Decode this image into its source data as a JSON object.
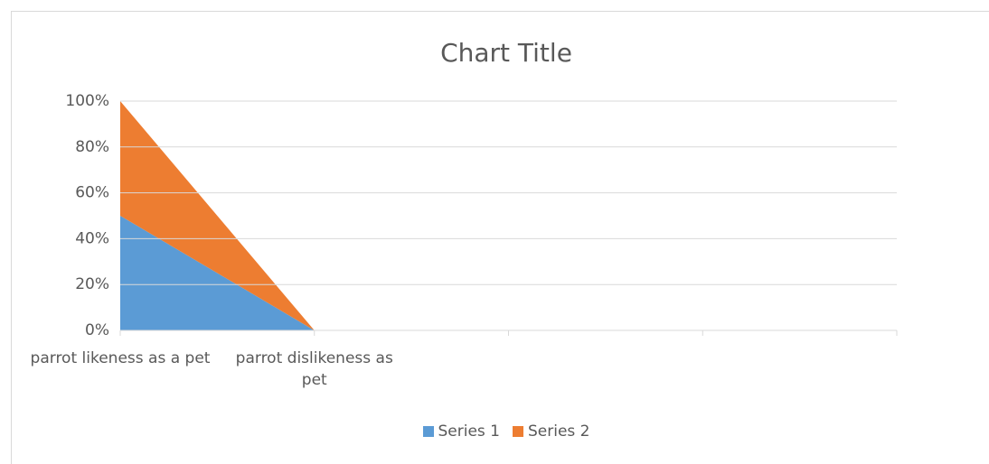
{
  "chart_data": {
    "type": "area",
    "stacked": "percent",
    "title": "Chart Title",
    "categories": [
      "parrot likeness as a pet",
      "parrot dislikeness as pet",
      null,
      null
    ],
    "series": [
      {
        "name": "Series 1",
        "color": "#5b9bd5",
        "values": [
          50,
          0,
          null,
          null
        ]
      },
      {
        "name": "Series 2",
        "color": "#ed7d31",
        "values": [
          50,
          0,
          null,
          null
        ]
      }
    ],
    "ylim": [
      0,
      100
    ],
    "yticks": [
      {
        "value": 0,
        "label": "0%"
      },
      {
        "value": 20,
        "label": "20%"
      },
      {
        "value": 40,
        "label": "40%"
      },
      {
        "value": 60,
        "label": "60%"
      },
      {
        "value": 80,
        "label": "80%"
      },
      {
        "value": 100,
        "label": "100%"
      }
    ],
    "grid": true,
    "legend": "bottom"
  }
}
